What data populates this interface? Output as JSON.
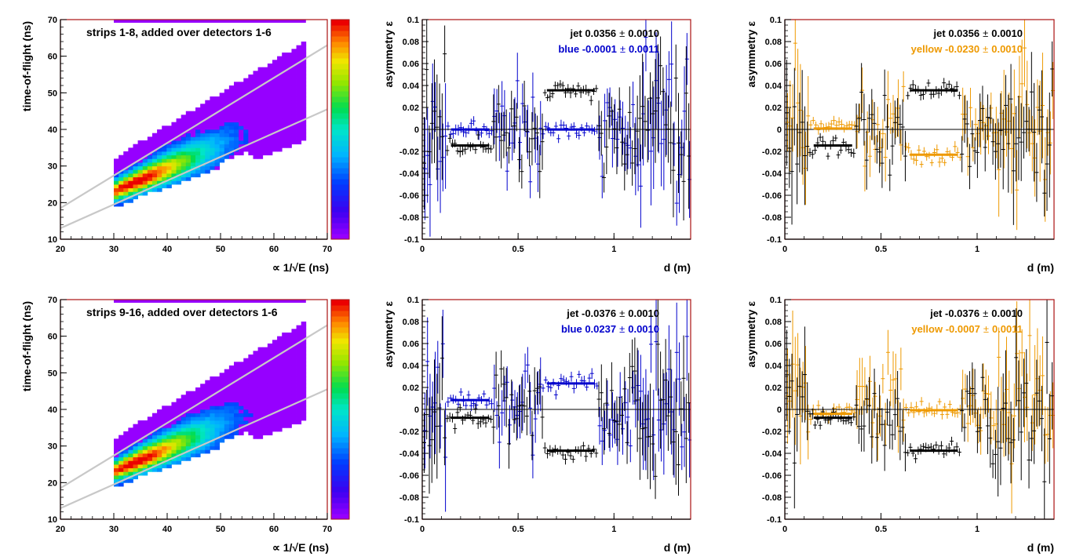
{
  "palette": {
    "blue": "#0000cc",
    "yellow": "#ee9900",
    "black": "#000000",
    "frame": "#aa1111",
    "curve": "#c8c8c8",
    "background": "#ffffff"
  },
  "chart_data": [
    {
      "type": "heatmap",
      "title": "strips 1-8, added over detectors 1-6",
      "ylabel": "time-of-flight (ns)",
      "xlabel": "∝ 1/√E (ns)",
      "xlim": [
        20,
        70
      ],
      "ylim": [
        10,
        70
      ],
      "xticks": [
        "20",
        "30",
        "40",
        "50",
        "60",
        "70"
      ],
      "yticks": [
        "10",
        "20",
        "30",
        "40",
        "50",
        "60",
        "70"
      ],
      "cut_lines": [
        {
          "from": [
            20,
            18.5
          ],
          "to": [
            70,
            63
          ]
        },
        {
          "from": [
            20,
            13
          ],
          "to": [
            70,
            45.5
          ]
        }
      ],
      "colorbar": "rainbow"
    },
    {
      "type": "scatter",
      "ylabel": "asymmetry ε",
      "xlabel": "d (m)",
      "xlim": [
        0,
        1.4
      ],
      "ylim": [
        -0.1,
        0.1
      ],
      "xticks": [
        "0",
        "0.5",
        "1"
      ],
      "yticks": [
        "-0.1",
        "-0.08",
        "-0.06",
        "-0.04",
        "-0.02",
        "0",
        "0.02",
        "0.04",
        "0.06",
        "0.08",
        "0.1"
      ],
      "fit_lines": [
        {
          "series": "jet",
          "segments": [
            [
              0.15,
              0.35,
              -0.0146
            ],
            [
              0.65,
              0.9,
              0.0356
            ]
          ]
        },
        {
          "series": "blue",
          "segments": [
            [
              0.15,
              0.35,
              -0.0001
            ],
            [
              0.65,
              0.9,
              -0.0001
            ]
          ]
        }
      ],
      "legend": [
        {
          "label": "jet",
          "value": "0.0356",
          "error": "0.0010",
          "color": "#000000"
        },
        {
          "label": "blue",
          "value": "-0.0001",
          "error": "0.0011",
          "color": "#0000cc"
        }
      ],
      "pm": "±"
    },
    {
      "type": "scatter",
      "ylabel": "asymmetry ε",
      "xlabel": "d (m)",
      "xlim": [
        0,
        1.4
      ],
      "ylim": [
        -0.1,
        0.1
      ],
      "xticks": [
        "0",
        "0.5",
        "1"
      ],
      "yticks": [
        "-0.1",
        "-0.08",
        "-0.06",
        "-0.04",
        "-0.02",
        "0",
        "0.02",
        "0.04",
        "0.06",
        "0.08",
        "0.1"
      ],
      "fit_lines": [
        {
          "series": "jet",
          "segments": [
            [
              0.15,
              0.35,
              -0.0146
            ],
            [
              0.65,
              0.9,
              0.0356
            ]
          ]
        },
        {
          "series": "yellow",
          "segments": [
            [
              0.15,
              0.35,
              0.0008
            ],
            [
              0.65,
              0.9,
              -0.023
            ]
          ]
        }
      ],
      "legend": [
        {
          "label": "jet",
          "value": "0.0356",
          "error": "0.0010",
          "color": "#000000"
        },
        {
          "label": "yellow",
          "value": "-0.0230",
          "error": "0.0010",
          "color": "#ee9900"
        }
      ],
      "pm": "±"
    },
    {
      "type": "heatmap",
      "title": "strips 9-16, added over detectors 1-6",
      "ylabel": "time-of-flight (ns)",
      "xlabel": "∝ 1/√E (ns)",
      "xlim": [
        20,
        70
      ],
      "ylim": [
        10,
        70
      ],
      "xticks": [
        "20",
        "30",
        "40",
        "50",
        "60",
        "70"
      ],
      "yticks": [
        "10",
        "20",
        "30",
        "40",
        "50",
        "60",
        "70"
      ],
      "cut_lines": [
        {
          "from": [
            20,
            18.5
          ],
          "to": [
            70,
            63
          ]
        },
        {
          "from": [
            20,
            13
          ],
          "to": [
            70,
            45.5
          ]
        }
      ],
      "colorbar": "rainbow"
    },
    {
      "type": "scatter",
      "ylabel": "asymmetry ε",
      "xlabel": "d (m)",
      "xlim": [
        0,
        1.4
      ],
      "ylim": [
        -0.1,
        0.1
      ],
      "xticks": [
        "0",
        "0.5",
        "1"
      ],
      "yticks": [
        "-0.1",
        "-0.08",
        "-0.06",
        "-0.04",
        "-0.02",
        "0",
        "0.02",
        "0.04",
        "0.06",
        "0.08",
        "0.1"
      ],
      "fit_lines": [
        {
          "series": "jet",
          "segments": [
            [
              0.15,
              0.35,
              -0.0076
            ],
            [
              0.65,
              0.9,
              -0.0376
            ]
          ]
        },
        {
          "series": "blue",
          "segments": [
            [
              0.15,
              0.35,
              0.0085
            ],
            [
              0.65,
              0.9,
              0.0237
            ]
          ]
        }
      ],
      "legend": [
        {
          "label": "jet",
          "value": "-0.0376",
          "error": "0.0010",
          "color": "#000000"
        },
        {
          "label": "blue",
          "value": "0.0237",
          "error": "0.0010",
          "color": "#0000cc"
        }
      ],
      "pm": "±"
    },
    {
      "type": "scatter",
      "ylabel": "asymmetry ε",
      "xlabel": "d (m)",
      "xlim": [
        0,
        1.4
      ],
      "ylim": [
        -0.1,
        0.1
      ],
      "xticks": [
        "0",
        "0.5",
        "1"
      ],
      "yticks": [
        "-0.1",
        "-0.08",
        "-0.06",
        "-0.04",
        "-0.02",
        "0",
        "0.02",
        "0.04",
        "0.06",
        "0.08",
        "0.1"
      ],
      "fit_lines": [
        {
          "series": "jet",
          "segments": [
            [
              0.15,
              0.35,
              -0.0076
            ],
            [
              0.65,
              0.9,
              -0.0376
            ]
          ]
        },
        {
          "series": "yellow",
          "segments": [
            [
              0.15,
              0.35,
              -0.004
            ],
            [
              0.65,
              0.9,
              -0.0007
            ]
          ]
        }
      ],
      "legend": [
        {
          "label": "jet",
          "value": "-0.0376",
          "error": "0.0010",
          "color": "#000000"
        },
        {
          "label": "yellow",
          "value": "-0.0007",
          "error": "0.0011",
          "color": "#ee9900"
        }
      ],
      "pm": "±"
    }
  ]
}
